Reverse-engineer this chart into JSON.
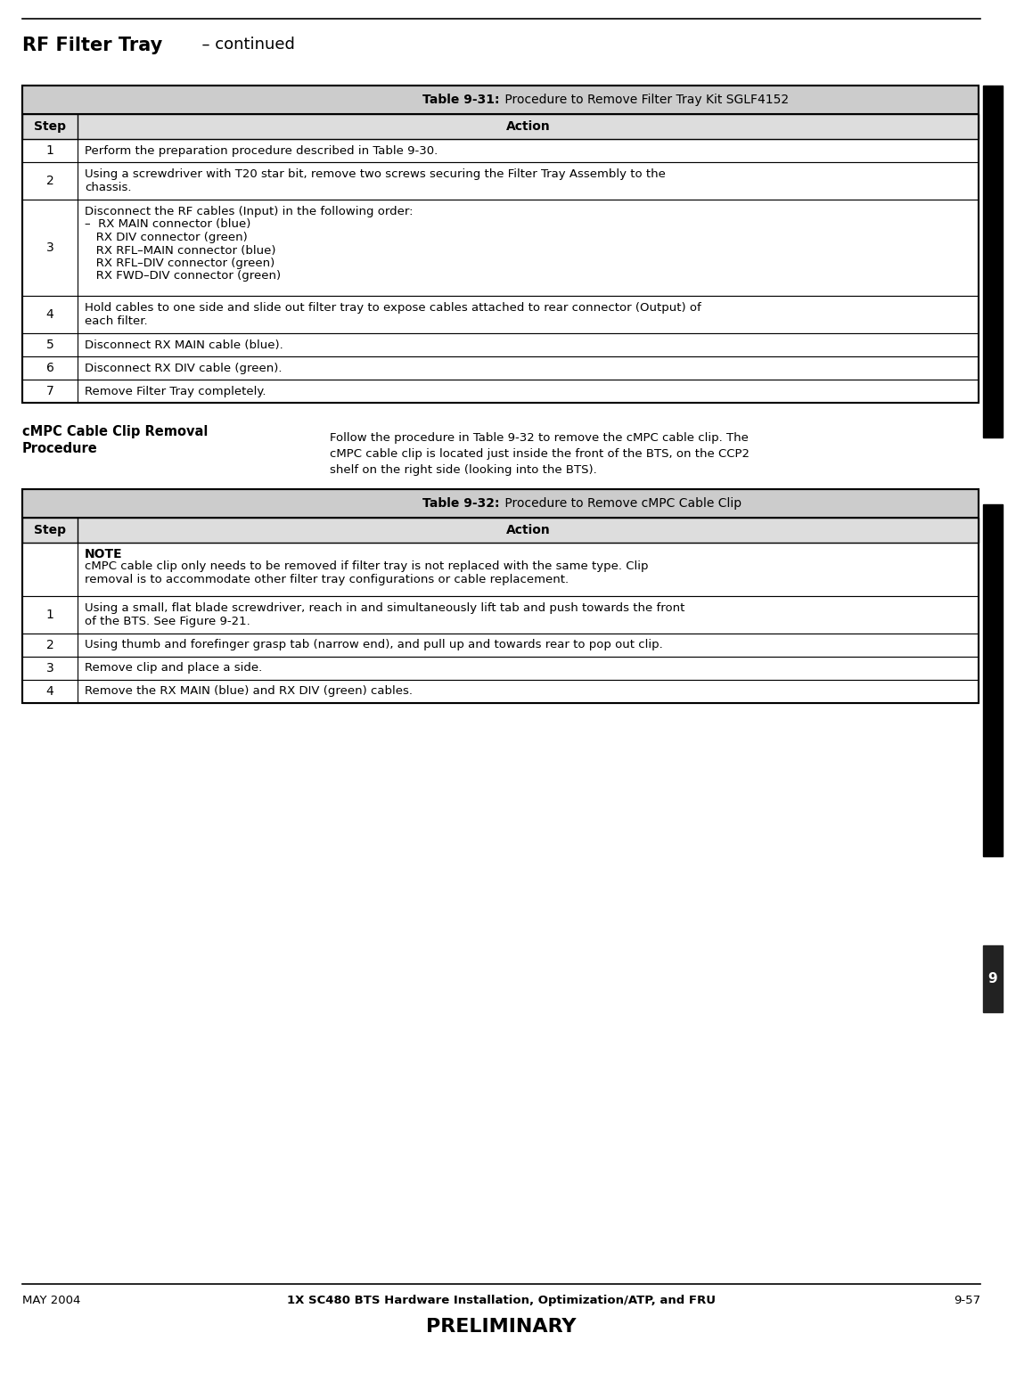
{
  "page_title_bold": "RF Filter Tray",
  "page_title_regular": "  – continued",
  "bg_color": "#ffffff",
  "table1_title_bold": "Table 9-31:",
  "table1_title_regular": " Procedure to Remove Filter Tray Kit SGLF4152",
  "table1_rows": [
    [
      "1",
      "Perform the preparation procedure described in Table 9-30."
    ],
    [
      "2",
      "Using a screwdriver with T20 star bit, remove two screws securing the Filter Tray Assembly to the\nchassis."
    ],
    [
      "3",
      "Disconnect the RF cables (Input) in the following order:\n–  RX MAIN connector (blue)\n   RX DIV connector (green)\n   RX RFL–MAIN connector (blue)\n   RX RFL–DIV connector (green)\n   RX FWD–DIV connector (green)"
    ],
    [
      "4",
      "Hold cables to one side and slide out filter tray to expose cables attached to rear connector (Output) of\neach filter."
    ],
    [
      "5",
      "Disconnect RX MAIN cable (blue)."
    ],
    [
      "6",
      "Disconnect RX DIV cable (green)."
    ],
    [
      "7",
      "Remove Filter Tray completely."
    ]
  ],
  "section_heading1": "cMPC Cable Clip Removal",
  "section_heading2": "Procedure",
  "section_body": "Follow the procedure in Table 9-32 to remove the cMPC cable clip. The\ncMPC cable clip is located just inside the front of the BTS, on the CCP2\nshelf on the right side (looking into the BTS).",
  "table2_title_bold": "Table 9-32:",
  "table2_title_regular": " Procedure to Remove cMPC Cable Clip",
  "table2_note_bold": "NOTE",
  "table2_note_text": "cMPC cable clip only needs to be removed if filter tray is not replaced with the same type. Clip\nremoval is to accommodate other filter tray configurations or cable replacement.",
  "table2_rows": [
    [
      "1",
      "Using a small, flat blade screwdriver, reach in and simultaneously lift tab and push towards the front\nof the BTS. See Figure 9-21."
    ],
    [
      "2",
      "Using thumb and forefinger grasp tab (narrow end), and pull up and towards rear to pop out clip."
    ],
    [
      "3",
      "Remove clip and place a side."
    ],
    [
      "4",
      "Remove the RX MAIN (blue) and RX DIV (green) cables."
    ]
  ],
  "right_bar_number": "9",
  "footer_left": "MAY 2004",
  "footer_center": "1X SC480 BTS Hardware Installation, Optimization/ATP, and FRU",
  "footer_right": "9-57",
  "footer_preliminary": "PRELIMINARY"
}
